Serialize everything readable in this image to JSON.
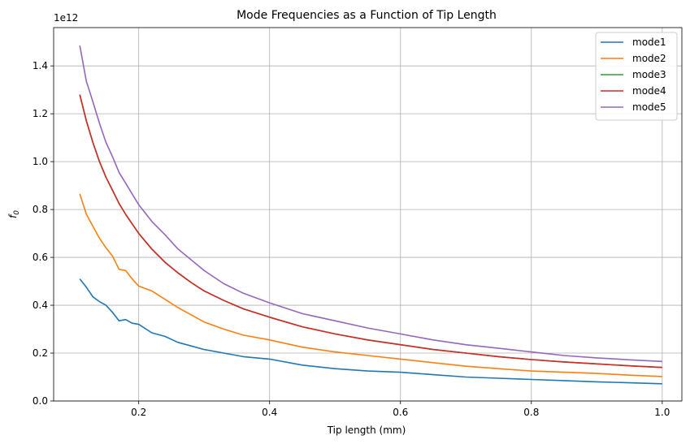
{
  "chart_data": {
    "type": "line",
    "title": "Mode Frequencies as a Function of Tip Length",
    "xlabel": "Tip length (mm)",
    "ylabel": "f",
    "ylabel_subscript": "0",
    "y_scale_label": "1e12",
    "xlim": [
      0.07,
      1.03
    ],
    "ylim": [
      0,
      1.56
    ],
    "xticks": [
      0.2,
      0.4,
      0.6,
      0.8,
      1.0
    ],
    "xtick_labels": [
      "0.2",
      "0.4",
      "0.6",
      "0.8",
      "1.0"
    ],
    "yticks": [
      0.0,
      0.2,
      0.4,
      0.6,
      0.8,
      1.0,
      1.2,
      1.4
    ],
    "ytick_labels": [
      "0.0",
      "0.2",
      "0.4",
      "0.6",
      "0.8",
      "1.0",
      "1.2",
      "1.4"
    ],
    "grid": true,
    "legend_position": "top-right",
    "x": [
      0.11,
      0.12,
      0.13,
      0.14,
      0.15,
      0.16,
      0.17,
      0.18,
      0.19,
      0.2,
      0.22,
      0.24,
      0.26,
      0.28,
      0.3,
      0.33,
      0.36,
      0.4,
      0.45,
      0.5,
      0.55,
      0.6,
      0.65,
      0.7,
      0.75,
      0.8,
      0.85,
      0.9,
      0.95,
      1.0
    ],
    "series": [
      {
        "name": "mode1",
        "color": "#1f77b4",
        "values": [
          0.51,
          0.475,
          0.435,
          0.415,
          0.4,
          0.37,
          0.335,
          0.34,
          0.325,
          0.32,
          0.285,
          0.27,
          0.245,
          0.23,
          0.215,
          0.2,
          0.185,
          0.175,
          0.15,
          0.135,
          0.125,
          0.12,
          0.11,
          0.1,
          0.095,
          0.09,
          0.085,
          0.08,
          0.076,
          0.072
        ]
      },
      {
        "name": "mode2",
        "color": "#ff7f0e",
        "values": [
          0.865,
          0.78,
          0.73,
          0.68,
          0.64,
          0.605,
          0.55,
          0.545,
          0.51,
          0.48,
          0.46,
          0.425,
          0.39,
          0.36,
          0.33,
          0.3,
          0.275,
          0.255,
          0.225,
          0.205,
          0.19,
          0.175,
          0.16,
          0.145,
          0.135,
          0.125,
          0.12,
          0.115,
          0.108,
          0.102
        ]
      },
      {
        "name": "mode3",
        "color": "#2ca02c",
        "values": [
          1.28,
          1.17,
          1.08,
          1.0,
          0.935,
          0.88,
          0.825,
          0.78,
          0.74,
          0.7,
          0.635,
          0.58,
          0.535,
          0.495,
          0.46,
          0.42,
          0.385,
          0.35,
          0.31,
          0.28,
          0.255,
          0.235,
          0.215,
          0.2,
          0.185,
          0.173,
          0.163,
          0.155,
          0.147,
          0.14
        ]
      },
      {
        "name": "mode4",
        "color": "#d62728",
        "values": [
          1.28,
          1.17,
          1.08,
          1.0,
          0.935,
          0.88,
          0.825,
          0.78,
          0.74,
          0.7,
          0.635,
          0.58,
          0.535,
          0.495,
          0.46,
          0.42,
          0.385,
          0.35,
          0.31,
          0.28,
          0.255,
          0.235,
          0.215,
          0.2,
          0.185,
          0.173,
          0.163,
          0.155,
          0.147,
          0.14
        ]
      },
      {
        "name": "mode5",
        "color": "#9467bd",
        "values": [
          1.485,
          1.335,
          1.25,
          1.16,
          1.08,
          1.02,
          0.955,
          0.91,
          0.865,
          0.82,
          0.75,
          0.695,
          0.635,
          0.59,
          0.545,
          0.49,
          0.45,
          0.41,
          0.365,
          0.335,
          0.305,
          0.28,
          0.255,
          0.235,
          0.22,
          0.205,
          0.19,
          0.18,
          0.172,
          0.165
        ]
      }
    ]
  }
}
